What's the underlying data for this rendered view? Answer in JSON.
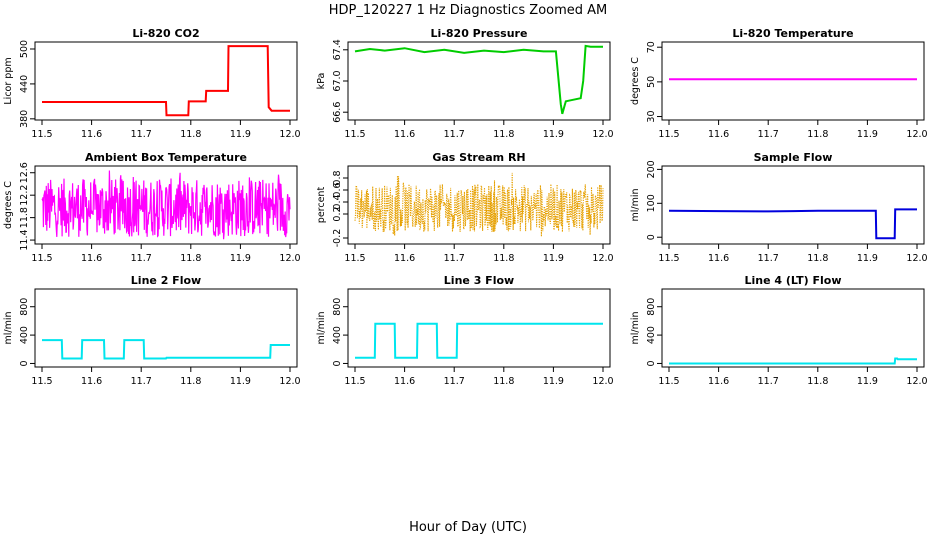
{
  "figure": {
    "title": "HDP_120227  1 Hz Diagnostics Zoomed AM",
    "xlabel": "Hour of Day (UTC)"
  },
  "chart_data": [
    {
      "type": "line",
      "title": "Li-820 CO2",
      "ylabel": "Licor ppm",
      "color": "#ff0000",
      "xlim": [
        11.5,
        12.0
      ],
      "ylim": [
        378,
        512
      ],
      "xticks": [
        "11.5",
        "11.6",
        "11.7",
        "11.8",
        "11.9",
        "12.0"
      ],
      "yticks": [
        380,
        440,
        500
      ],
      "ytick_labels": [
        "380",
        "440",
        "500"
      ],
      "series": [
        {
          "x": [
            11.5,
            11.75,
            11.751,
            11.795,
            11.796,
            11.83,
            11.831,
            11.875,
            11.876,
            11.955,
            11.957,
            11.963,
            12.0
          ],
          "y": [
            409,
            409,
            386,
            386,
            410,
            410,
            428,
            428,
            505,
            505,
            400,
            394,
            394
          ]
        }
      ]
    },
    {
      "type": "line",
      "title": "Li-820 Pressure",
      "ylabel": "kPa",
      "color": "#00cc00",
      "xlim": [
        11.5,
        12.0
      ],
      "ylim": [
        66.5,
        67.5
      ],
      "xticks": [
        "11.5",
        "11.6",
        "11.7",
        "11.8",
        "11.9",
        "12.0"
      ],
      "yticks": [
        66.6,
        67.0,
        67.4
      ],
      "ytick_labels": [
        "66.6",
        "67.0",
        "67.4"
      ],
      "series": [
        {
          "x": [
            11.5,
            11.53,
            11.56,
            11.6,
            11.64,
            11.68,
            11.72,
            11.76,
            11.8,
            11.84,
            11.88,
            11.905,
            11.915,
            11.918,
            11.925,
            11.955,
            11.96,
            11.965,
            11.975,
            12.0
          ],
          "y": [
            67.38,
            67.41,
            67.39,
            67.42,
            67.37,
            67.4,
            67.36,
            67.39,
            67.37,
            67.4,
            67.38,
            67.38,
            66.7,
            66.58,
            66.74,
            66.78,
            67.0,
            67.45,
            67.44,
            67.44
          ]
        }
      ]
    },
    {
      "type": "line",
      "title": "Li-820 Temperature",
      "ylabel": "degrees C",
      "color": "#ff00ff",
      "xlim": [
        11.5,
        12.0
      ],
      "ylim": [
        28,
        73
      ],
      "xticks": [
        "11.5",
        "11.6",
        "11.7",
        "11.8",
        "11.9",
        "12.0"
      ],
      "yticks": [
        30,
        50,
        70
      ],
      "ytick_labels": [
        "30",
        "50",
        "70"
      ],
      "series": [
        {
          "x": [
            11.5,
            12.0
          ],
          "y": [
            51.5,
            51.5
          ]
        }
      ]
    },
    {
      "type": "line",
      "title": "Ambient Box Temperature",
      "ylabel": "degrees C",
      "color": "#ff00ff",
      "xlim": [
        11.5,
        12.0
      ],
      "ylim": [
        11.33,
        12.72
      ],
      "xticks": [
        "11.5",
        "11.6",
        "11.7",
        "11.8",
        "11.9",
        "12.0"
      ],
      "yticks": [
        11.4,
        11.8,
        12.2,
        12.6
      ],
      "ytick_labels": [
        "11.4",
        "11.8",
        "12.2",
        "12.6"
      ],
      "series": [
        {
          "x": [
            11.5,
            11.6,
            11.65,
            11.7,
            11.8,
            11.9,
            12.0
          ],
          "y": [
            12.0,
            12.0,
            12.05,
            12.0,
            12.0,
            12.0,
            12.0
          ]
        }
      ],
      "noise": {
        "band": [
          11.45,
          12.5
        ],
        "spikes": [
          11.4,
          12.65
        ],
        "style": "dense"
      }
    },
    {
      "type": "scatter",
      "title": "Gas Stream RH",
      "ylabel": "percent",
      "color": "#e6a000",
      "xlim": [
        11.5,
        12.0
      ],
      "ylim": [
        -0.3,
        1.0
      ],
      "xticks": [
        "11.5",
        "11.6",
        "11.7",
        "11.8",
        "11.9",
        "12.0"
      ],
      "yticks": [
        -0.2,
        0.2,
        0.4,
        0.6,
        0.8
      ],
      "ytick_labels": [
        "-0.2",
        "0.2",
        "0.4",
        "0.6",
        "0.8"
      ],
      "series": [
        {
          "x": [
            11.5,
            12.0
          ],
          "y": [
            0.3,
            0.3
          ]
        }
      ],
      "noise": {
        "band": [
          -0.1,
          0.7
        ],
        "spikes": [
          -0.2,
          0.9
        ],
        "style": "dots"
      }
    },
    {
      "type": "line",
      "title": "Sample Flow",
      "ylabel": "ml/min",
      "color": "#0000dd",
      "xlim": [
        11.5,
        12.0
      ],
      "ylim": [
        -20,
        210
      ],
      "xticks": [
        "11.5",
        "11.6",
        "11.7",
        "11.8",
        "11.9",
        "12.0"
      ],
      "yticks": [
        0,
        100,
        200
      ],
      "ytick_labels": [
        "0",
        "100",
        "200"
      ],
      "series": [
        {
          "x": [
            11.5,
            11.6,
            11.7,
            11.75,
            11.8,
            11.9,
            11.917,
            11.918,
            11.955,
            11.956,
            12.0
          ],
          "y": [
            78,
            77,
            76,
            77,
            78,
            78,
            78,
            -3,
            -3,
            82,
            82
          ]
        }
      ]
    },
    {
      "type": "line",
      "title": "Line 2 Flow",
      "ylabel": "ml/min",
      "color": "#00e5ee",
      "xlim": [
        11.5,
        12.0
      ],
      "ylim": [
        -50,
        1050
      ],
      "xticks": [
        "11.5",
        "11.6",
        "11.7",
        "11.8",
        "11.9",
        "12.0"
      ],
      "yticks": [
        0,
        400,
        800
      ],
      "ytick_labels": [
        "0",
        "400",
        "800"
      ],
      "series": [
        {
          "x": [
            11.5,
            11.54,
            11.541,
            11.58,
            11.581,
            11.625,
            11.626,
            11.665,
            11.666,
            11.705,
            11.706,
            11.75,
            11.751,
            11.96,
            11.961,
            12.0
          ],
          "y": [
            330,
            330,
            70,
            70,
            330,
            330,
            70,
            70,
            330,
            330,
            70,
            70,
            80,
            80,
            260,
            260
          ]
        }
      ]
    },
    {
      "type": "line",
      "title": "Line 3 Flow",
      "ylabel": "ml/min",
      "color": "#00e5ee",
      "xlim": [
        11.5,
        12.0
      ],
      "ylim": [
        -50,
        1050
      ],
      "xticks": [
        "11.5",
        "11.6",
        "11.7",
        "11.8",
        "11.9",
        "12.0"
      ],
      "yticks": [
        0,
        400,
        800
      ],
      "ytick_labels": [
        "0",
        "400",
        "800"
      ],
      "series": [
        {
          "x": [
            11.5,
            11.54,
            11.541,
            11.58,
            11.581,
            11.625,
            11.626,
            11.665,
            11.666,
            11.705,
            11.706,
            12.0
          ],
          "y": [
            80,
            80,
            560,
            560,
            80,
            80,
            560,
            560,
            80,
            80,
            560,
            560
          ]
        }
      ]
    },
    {
      "type": "line",
      "title": "Line 4 (LT) Flow",
      "ylabel": "ml/min",
      "color": "#00e5ee",
      "xlim": [
        11.5,
        12.0
      ],
      "ylim": [
        -50,
        1050
      ],
      "xticks": [
        "11.5",
        "11.6",
        "11.7",
        "11.8",
        "11.9",
        "12.0"
      ],
      "yticks": [
        0,
        400,
        800
      ],
      "ytick_labels": [
        "0",
        "400",
        "800"
      ],
      "series": [
        {
          "x": [
            11.5,
            11.955,
            11.956,
            11.96,
            11.961,
            12.0
          ],
          "y": [
            0,
            0,
            70,
            70,
            60,
            60
          ]
        }
      ]
    }
  ]
}
